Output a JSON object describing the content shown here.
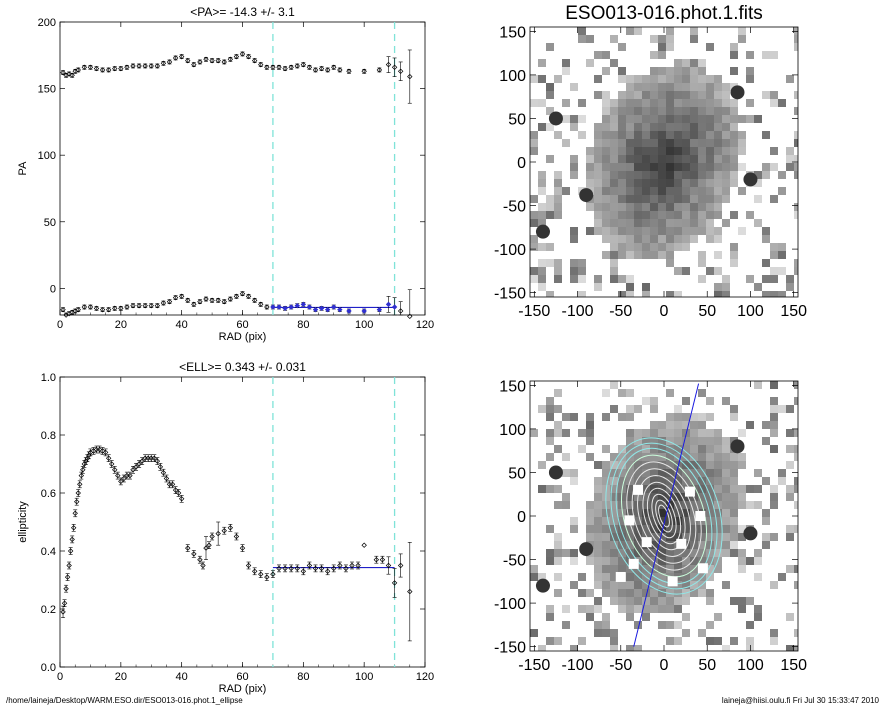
{
  "chart_data": [
    {
      "type": "scatter",
      "title": "<PA>= -14.3 +/-   3.1",
      "xlabel": "RAD (pix)",
      "ylabel": "PA",
      "xlim": [
        0,
        120
      ],
      "ylim": [
        -20,
        200
      ],
      "x_ticks": [
        0,
        20,
        40,
        60,
        80,
        100,
        120
      ],
      "y_ticks": [
        0,
        50,
        100,
        150,
        200
      ],
      "fit_range": [
        70,
        110
      ],
      "fit_value": -14.3,
      "series": [
        {
          "points": [
            [
              1,
              162
            ],
            [
              2,
              160
            ],
            [
              3,
              161
            ],
            [
              4,
              160
            ],
            [
              5,
              163
            ],
            [
              6,
              164
            ],
            [
              8,
              166
            ],
            [
              10,
              166
            ],
            [
              12,
              165
            ],
            [
              14,
              164
            ],
            [
              16,
              164
            ],
            [
              18,
              165
            ],
            [
              20,
              165
            ],
            [
              22,
              166
            ],
            [
              24,
              167
            ],
            [
              26,
              167
            ],
            [
              28,
              167
            ],
            [
              30,
              167
            ],
            [
              32,
              167
            ],
            [
              34,
              169
            ],
            [
              36,
              170
            ],
            [
              38,
              173
            ],
            [
              40,
              174
            ],
            [
              42,
              171
            ],
            [
              44,
              168
            ],
            [
              46,
              170
            ],
            [
              48,
              172
            ],
            [
              50,
              171
            ],
            [
              52,
              171
            ],
            [
              54,
              170
            ],
            [
              56,
              172
            ],
            [
              58,
              174
            ],
            [
              60,
              176
            ],
            [
              62,
              174
            ],
            [
              64,
              171
            ],
            [
              66,
              168
            ],
            [
              68,
              166
            ],
            [
              70,
              166
            ],
            [
              72,
              166
            ],
            [
              74,
              165
            ],
            [
              76,
              166
            ],
            [
              78,
              167
            ],
            [
              80,
              168
            ],
            [
              82,
              166
            ],
            [
              84,
              164
            ],
            [
              86,
              165
            ],
            [
              88,
              164
            ],
            [
              90,
              166
            ],
            [
              92,
              164
            ],
            [
              95,
              163
            ],
            [
              100,
              163
            ],
            [
              105,
              164
            ],
            [
              108,
              168
            ],
            [
              110,
              166
            ],
            [
              112,
              163
            ],
            [
              115,
              159
            ]
          ],
          "errors": [
            [
              108,
              6
            ],
            [
              110,
              7
            ],
            [
              112,
              7
            ],
            [
              115,
              20
            ]
          ]
        },
        {
          "points": [
            [
              1,
              -16
            ],
            [
              2,
              -20
            ],
            [
              3,
              -19
            ],
            [
              4,
              -18
            ],
            [
              5,
              -17
            ],
            [
              6,
              -16
            ],
            [
              8,
              -14
            ],
            [
              10,
              -14
            ],
            [
              12,
              -15
            ],
            [
              14,
              -16
            ],
            [
              16,
              -16
            ],
            [
              18,
              -15
            ],
            [
              20,
              -15
            ],
            [
              22,
              -14
            ],
            [
              24,
              -13
            ],
            [
              26,
              -13
            ],
            [
              28,
              -13
            ],
            [
              30,
              -13
            ],
            [
              32,
              -13
            ],
            [
              34,
              -11
            ],
            [
              36,
              -10
            ],
            [
              38,
              -7
            ],
            [
              40,
              -6
            ],
            [
              42,
              -9
            ],
            [
              44,
              -12
            ],
            [
              46,
              -10
            ],
            [
              48,
              -8
            ],
            [
              50,
              -9
            ],
            [
              52,
              -9
            ],
            [
              54,
              -10
            ],
            [
              56,
              -8
            ],
            [
              58,
              -6
            ],
            [
              60,
              -4
            ],
            [
              62,
              -6
            ],
            [
              64,
              -9
            ],
            [
              66,
              -12
            ],
            [
              68,
              -14
            ],
            [
              70,
              -14
            ],
            [
              72,
              -14
            ],
            [
              74,
              -15
            ],
            [
              76,
              -14
            ],
            [
              78,
              -13
            ],
            [
              80,
              -12
            ],
            [
              82,
              -14
            ],
            [
              84,
              -16
            ],
            [
              86,
              -15
            ],
            [
              88,
              -16
            ],
            [
              90,
              -14
            ],
            [
              92,
              -16
            ],
            [
              95,
              -17
            ],
            [
              100,
              -17
            ],
            [
              105,
              -16
            ],
            [
              108,
              -12
            ],
            [
              110,
              -14
            ],
            [
              112,
              -17
            ],
            [
              115,
              -21
            ]
          ],
          "errors": [
            [
              108,
              6
            ],
            [
              110,
              7
            ],
            [
              112,
              7
            ],
            [
              115,
              20
            ]
          ]
        }
      ]
    },
    {
      "type": "scatter",
      "title": "<ELL>= 0.343 +/-  0.031",
      "xlabel": "RAD (pix)",
      "ylabel": "ellipticity",
      "xlim": [
        0,
        120
      ],
      "ylim": [
        0,
        1
      ],
      "x_ticks": [
        0,
        20,
        40,
        60,
        80,
        100,
        120
      ],
      "y_ticks": [
        0.0,
        0.2,
        0.4,
        0.6,
        0.8,
        1.0
      ],
      "fit_range": [
        70,
        110
      ],
      "fit_value": 0.343,
      "series": [
        {
          "points": [
            [
              1,
              0.19
            ],
            [
              1.5,
              0.22
            ],
            [
              2,
              0.27
            ],
            [
              2.5,
              0.31
            ],
            [
              3,
              0.35
            ],
            [
              3.5,
              0.4
            ],
            [
              4,
              0.44
            ],
            [
              4.5,
              0.48
            ],
            [
              5,
              0.53
            ],
            [
              5.5,
              0.57
            ],
            [
              6,
              0.6
            ],
            [
              6.5,
              0.63
            ],
            [
              7,
              0.66
            ],
            [
              7.5,
              0.68
            ],
            [
              8,
              0.7
            ],
            [
              8.5,
              0.71
            ],
            [
              9,
              0.72
            ],
            [
              9.5,
              0.73
            ],
            [
              10,
              0.74
            ],
            [
              11,
              0.745
            ],
            [
              12,
              0.75
            ],
            [
              13,
              0.75
            ],
            [
              14,
              0.745
            ],
            [
              15,
              0.74
            ],
            [
              16,
              0.72
            ],
            [
              17,
              0.7
            ],
            [
              18,
              0.68
            ],
            [
              19,
              0.66
            ],
            [
              20,
              0.64
            ],
            [
              21,
              0.65
            ],
            [
              22,
              0.66
            ],
            [
              23,
              0.66
            ],
            [
              24,
              0.68
            ],
            [
              25,
              0.69
            ],
            [
              26,
              0.7
            ],
            [
              27,
              0.71
            ],
            [
              28,
              0.72
            ],
            [
              29,
              0.72
            ],
            [
              30,
              0.72
            ],
            [
              31,
              0.72
            ],
            [
              32,
              0.71
            ],
            [
              33,
              0.69
            ],
            [
              34,
              0.67
            ],
            [
              35,
              0.65
            ],
            [
              36,
              0.63
            ],
            [
              37,
              0.63
            ],
            [
              38,
              0.61
            ],
            [
              39,
              0.6
            ],
            [
              40,
              0.58
            ],
            [
              42,
              0.41
            ],
            [
              44,
              0.39
            ],
            [
              46,
              0.37
            ],
            [
              47,
              0.35
            ],
            [
              48,
              0.41
            ],
            [
              49,
              0.42
            ],
            [
              50,
              0.45
            ],
            [
              52,
              0.46
            ],
            [
              54,
              0.47
            ],
            [
              56,
              0.48
            ],
            [
              58,
              0.45
            ],
            [
              60,
              0.41
            ],
            [
              62,
              0.35
            ],
            [
              64,
              0.33
            ],
            [
              66,
              0.32
            ],
            [
              68,
              0.31
            ],
            [
              70,
              0.32
            ],
            [
              72,
              0.34
            ],
            [
              74,
              0.34
            ],
            [
              76,
              0.34
            ],
            [
              78,
              0.34
            ],
            [
              80,
              0.33
            ],
            [
              82,
              0.35
            ],
            [
              84,
              0.34
            ],
            [
              86,
              0.34
            ],
            [
              88,
              0.33
            ],
            [
              90,
              0.34
            ],
            [
              92,
              0.35
            ],
            [
              94,
              0.34
            ],
            [
              96,
              0.35
            ],
            [
              98,
              0.35
            ],
            [
              100,
              0.42
            ],
            [
              104,
              0.37
            ],
            [
              106,
              0.37
            ],
            [
              108,
              0.35
            ],
            [
              110,
              0.29
            ],
            [
              112,
              0.35
            ],
            [
              115,
              0.26
            ]
          ],
          "errors": [
            [
              1,
              0.02
            ],
            [
              48,
              0.04
            ],
            [
              52,
              0.04
            ],
            [
              100,
              0.0
            ],
            [
              108,
              0.03
            ],
            [
              110,
              0.05
            ],
            [
              112,
              0.04
            ],
            [
              115,
              0.17
            ]
          ]
        }
      ]
    },
    {
      "type": "heatmap",
      "title": "ESO013-016.phot.1.fits",
      "xlim": [
        -155,
        155
      ],
      "ylim": [
        -155,
        155
      ],
      "x_ticks": [
        -150,
        -100,
        -50,
        0,
        50,
        100,
        150
      ],
      "y_ticks": [
        -150,
        -100,
        -50,
        0,
        50,
        100,
        150
      ],
      "colormap": "gray-inverted"
    },
    {
      "type": "heatmap",
      "xlim": [
        -155,
        155
      ],
      "ylim": [
        -155,
        155
      ],
      "x_ticks": [
        -150,
        -100,
        -50,
        0,
        50,
        100,
        150
      ],
      "y_ticks": [
        -150,
        -100,
        -50,
        0,
        50,
        100,
        150
      ],
      "colormap": "gray-inverted",
      "overlay": "fitted isophote ellipses with major-axis line"
    }
  ],
  "colors": {
    "fit_range_line": "#7fe3d8",
    "fit_line": "#2020c8",
    "fit_points": "#3030d0",
    "ellipse_outer": "#8fe8e8",
    "ellipse_inner": "#e8e8e8",
    "axis_line": "#1a1ae0"
  },
  "footer": {
    "left": "/home/laineja/Desktop/WARM.ESO.dir/ESO013-016.phot.1_ellipse",
    "right": "laineja@hiisi.oulu.fi  Fri Jul 30 15:33:47 2010"
  }
}
